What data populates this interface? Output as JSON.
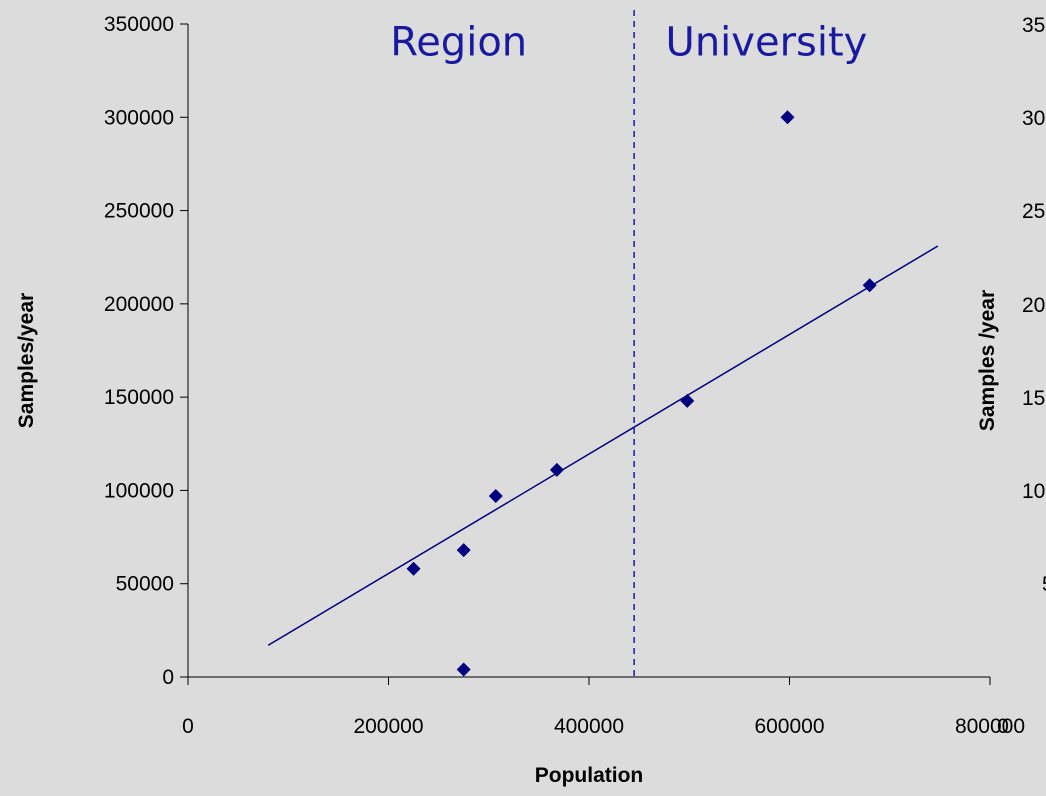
{
  "chart_data": [
    {
      "type": "scatter",
      "title": "",
      "xlabel": "Population",
      "ylabel": "Samples/year",
      "xlim": [
        0,
        800000
      ],
      "ylim": [
        0,
        350000
      ],
      "x_ticks": [
        "0",
        "200000",
        "400000",
        "600000",
        "800000"
      ],
      "y_ticks": [
        "0",
        "50000",
        "100000",
        "150000",
        "200000",
        "250000",
        "300000",
        "350000"
      ],
      "grid": false,
      "legend": "none",
      "series": [
        {
          "points": [
            {
              "x": 225000,
              "y": 58000
            },
            {
              "x": 275000,
              "y": 68000
            },
            {
              "x": 275000,
              "y": 4000
            },
            {
              "x": 307000,
              "y": 97000
            },
            {
              "x": 368000,
              "y": 111000
            },
            {
              "x": 498000,
              "y": 148000
            },
            {
              "x": 598000,
              "y": 300000
            },
            {
              "x": 680000,
              "y": 210000
            }
          ],
          "marker": "diamond",
          "color": "#000080"
        }
      ],
      "trendline": {
        "type": "linear",
        "x": [
          80000,
          748000
        ],
        "y": [
          17000,
          231000
        ],
        "color": "#000080"
      },
      "divider": {
        "x": 445000,
        "style": "dashed",
        "color": "#1a1aa0"
      },
      "annotations": [
        {
          "text": "Region",
          "x": 270000,
          "y": 333000
        },
        {
          "text": "University",
          "x": 577000,
          "y": 333000
        }
      ]
    },
    {
      "type": "scatter",
      "partial": true,
      "ylabel": "Samples /year",
      "y_ticks_partial": [
        "35",
        "30",
        "25",
        "20",
        "15",
        "10",
        "5"
      ]
    }
  ]
}
